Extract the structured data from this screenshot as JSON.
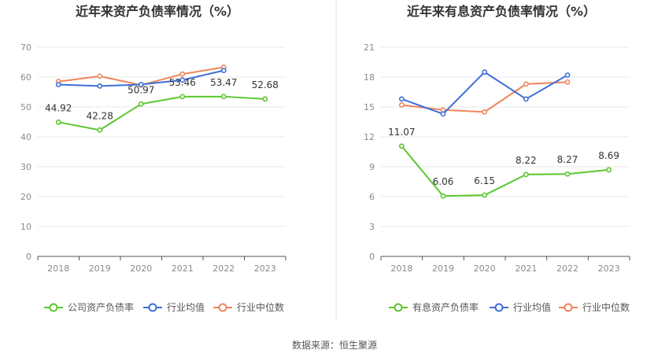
{
  "source_label": "数据来源：恒生聚源",
  "chart_data": [
    {
      "type": "line",
      "title": "近年来资产负债率情况（%）",
      "categories": [
        "2018",
        "2019",
        "2020",
        "2021",
        "2022",
        "2023"
      ],
      "ylim": [
        0,
        70
      ],
      "yticks": [
        0,
        10,
        20,
        30,
        40,
        50,
        60,
        70
      ],
      "series": [
        {
          "name": "公司资产负债率",
          "color": "#5bc72f",
          "values": [
            44.92,
            42.28,
            50.97,
            53.46,
            53.47,
            52.68
          ],
          "labeled": true,
          "labels": [
            "44.92",
            "42.28",
            "50.97",
            "53.46",
            "53.47",
            "52.68"
          ]
        },
        {
          "name": "行业均值",
          "color": "#3d6fd8",
          "values": [
            57.5,
            57.0,
            57.5,
            59.0,
            62.2,
            null
          ],
          "labeled": false
        },
        {
          "name": "行业中位数",
          "color": "#f0855a",
          "values": [
            58.5,
            60.3,
            57.3,
            61.0,
            63.3,
            null
          ],
          "labeled": false
        }
      ]
    },
    {
      "type": "line",
      "title": "近年来有息资产负债率情况（%）",
      "categories": [
        "2018",
        "2019",
        "2020",
        "2021",
        "2022",
        "2023"
      ],
      "ylim": [
        0,
        21
      ],
      "yticks": [
        0,
        3,
        6,
        9,
        12,
        15,
        18,
        21
      ],
      "series": [
        {
          "name": "有息资产负债率",
          "color": "#5bc72f",
          "values": [
            11.07,
            6.06,
            6.15,
            8.22,
            8.27,
            8.69
          ],
          "labeled": true,
          "labels": [
            "11.07",
            "6.06",
            "6.15",
            "8.22",
            "8.27",
            "8.69"
          ]
        },
        {
          "name": "行业均值",
          "color": "#3d6fd8",
          "values": [
            15.8,
            14.3,
            18.5,
            15.8,
            18.2,
            null
          ],
          "labeled": false
        },
        {
          "name": "行业中位数",
          "color": "#f0855a",
          "values": [
            15.2,
            14.7,
            14.5,
            17.3,
            17.5,
            null
          ],
          "labeled": false
        }
      ]
    }
  ]
}
